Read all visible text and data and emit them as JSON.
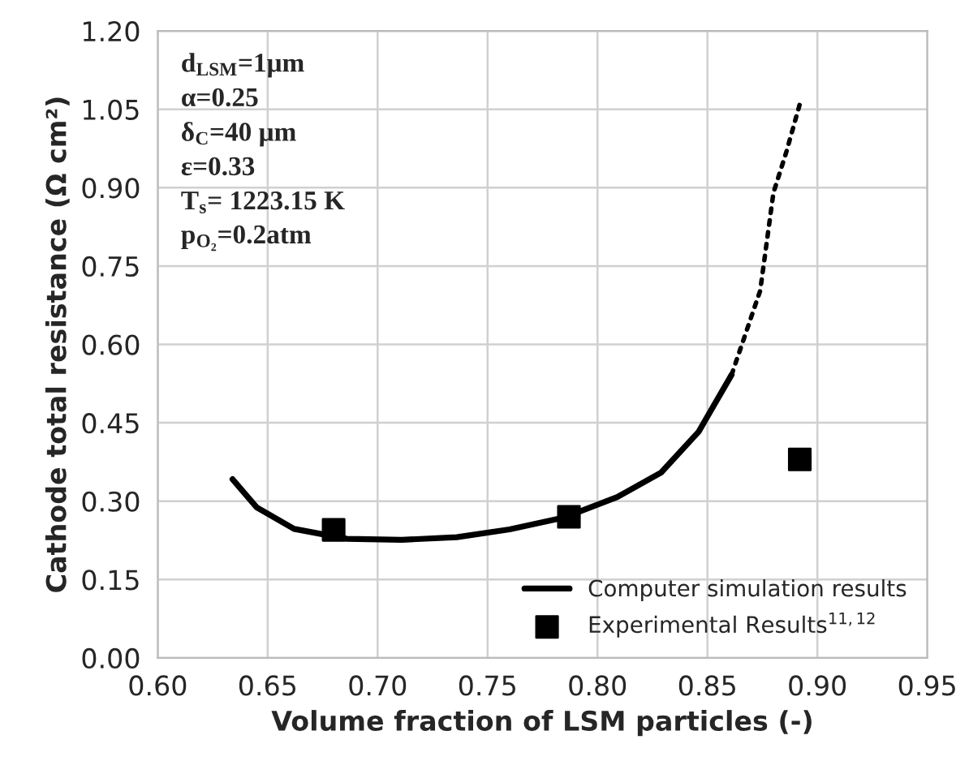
{
  "chart_data": {
    "type": "line",
    "xlabel": "Volume fraction of LSM particles (-)",
    "ylabel": "Cathode total resistance (Ω cm²)",
    "xlim": [
      0.6,
      0.95
    ],
    "ylim": [
      0,
      1.2
    ],
    "xticks": [
      {
        "value": 0.6,
        "label": "0.60"
      },
      {
        "value": 0.65,
        "label": "0.65"
      },
      {
        "value": 0.7,
        "label": "0.70"
      },
      {
        "value": 0.75,
        "label": "0.75"
      },
      {
        "value": 0.8,
        "label": "0.80"
      },
      {
        "value": 0.85,
        "label": "0.85"
      },
      {
        "value": 0.9,
        "label": "0.90"
      },
      {
        "value": 0.95,
        "label": "0.95"
      }
    ],
    "yticks": [
      {
        "value": 0,
        "label": "0.00"
      },
      {
        "value": 0.15,
        "label": "0.15"
      },
      {
        "value": 0.3,
        "label": "0.30"
      },
      {
        "value": 0.45,
        "label": "0.45"
      },
      {
        "value": 0.6,
        "label": "0.60"
      },
      {
        "value": 0.75,
        "label": "0.75"
      },
      {
        "value": 0.9,
        "label": "0.90"
      },
      {
        "value": 1.05,
        "label": "1.05"
      },
      {
        "value": 1.2,
        "label": "1.20"
      }
    ],
    "grid": true,
    "legend": "bottom right",
    "series": [
      {
        "name": "Computer simulation results",
        "color": "#000000",
        "line_style": "solid",
        "marker": "none",
        "x": [
          0.634,
          0.645,
          0.662,
          0.686,
          0.711,
          0.736,
          0.76,
          0.785,
          0.809,
          0.829,
          0.846,
          0.861
        ],
        "values": [
          0.342,
          0.288,
          0.247,
          0.228,
          0.226,
          0.231,
          0.246,
          0.269,
          0.308,
          0.355,
          0.433,
          0.542
        ]
      },
      {
        "color": "#000000",
        "line_style": "dotted",
        "marker": "none",
        "x": [
          0.861,
          0.874,
          0.88,
          0.886,
          0.892
        ],
        "values": [
          0.542,
          0.703,
          0.89,
          0.97,
          1.06
        ]
      },
      {
        "name": "Experimental Results$^{11,12}$",
        "type": "scatter",
        "color": "#000000",
        "marker": "square",
        "x": [
          0.68,
          0.787,
          0.892
        ],
        "values": [
          0.245,
          0.27,
          0.38
        ]
      }
    ],
    "annotations": [
      "d$_{LSM}$=1μm",
      "α=0.25",
      "δ$_{C}$=40 μm",
      "ε=0.33",
      "T$_{s}$= 1223.15 K",
      "p$_{O₂}$=0.2atm"
    ]
  }
}
